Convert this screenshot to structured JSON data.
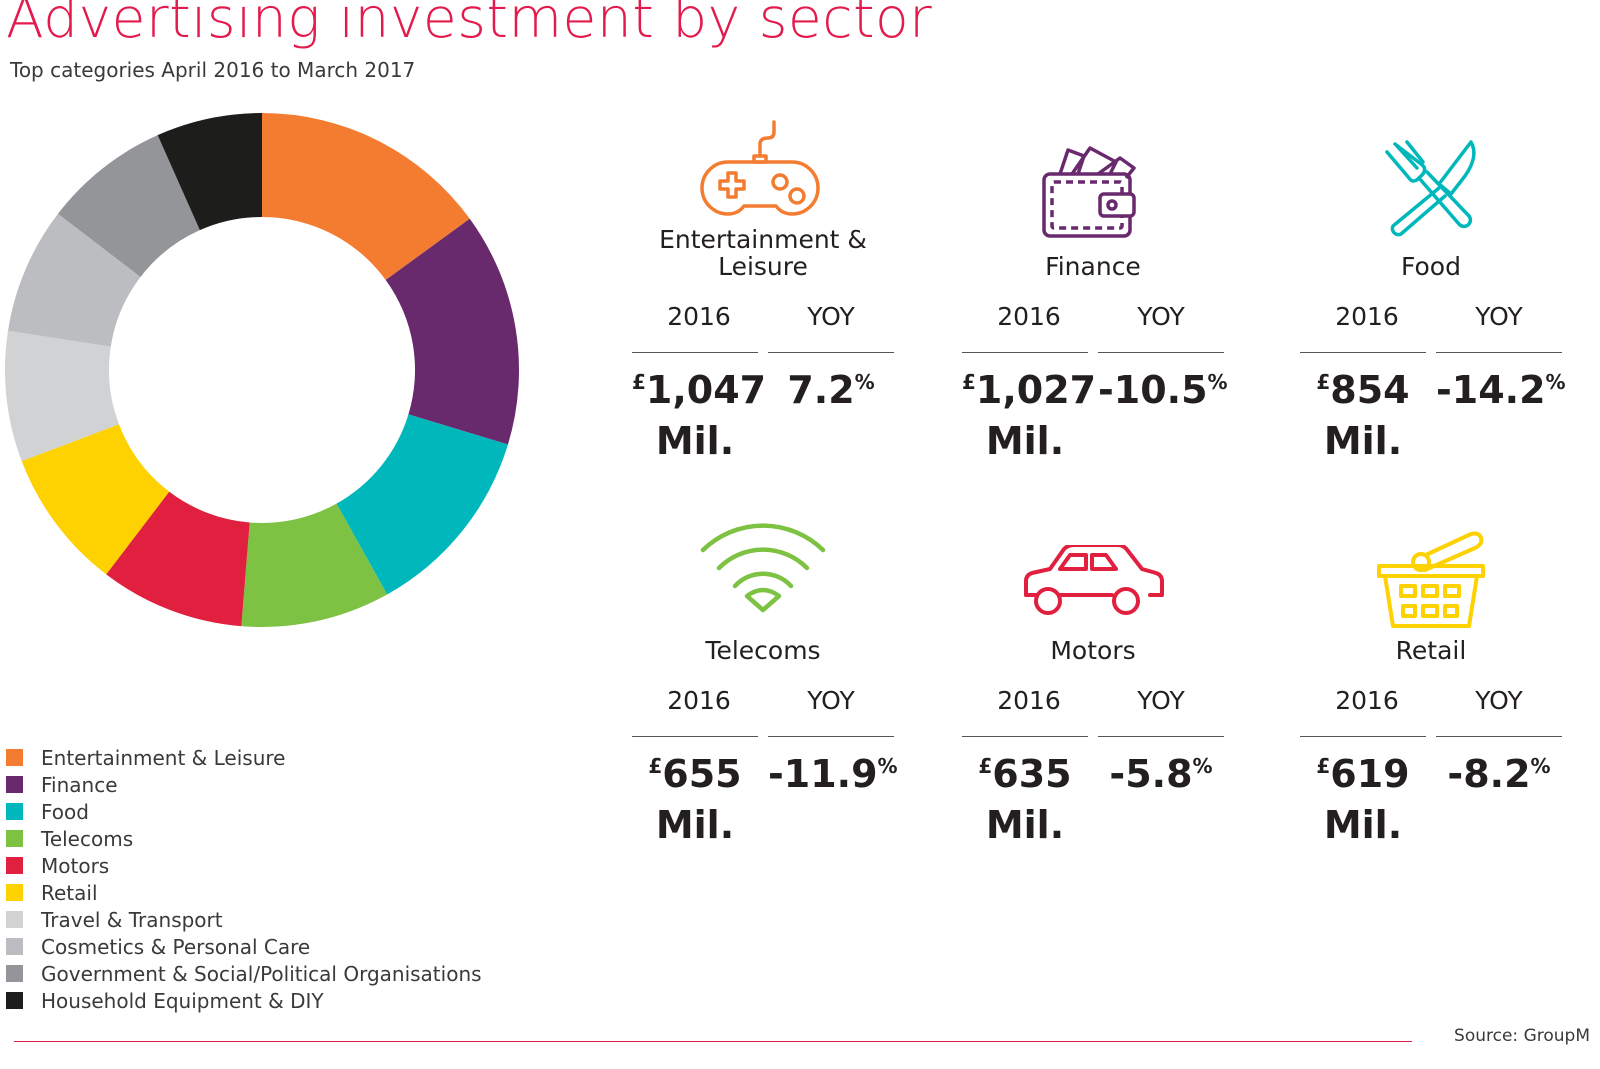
{
  "title": "Advertising investment by sector",
  "subtitle": "Top categories April 2016 to March 2017",
  "source": "Source: GroupM",
  "chart_data": {
    "type": "pie",
    "variant": "donut",
    "categories": [
      "Entertainment & Leisure",
      "Finance",
      "Food",
      "Telecoms",
      "Motors",
      "Retail",
      "Travel & Transport",
      "Cosmetics & Personal Care",
      "Government & Social/Political Organisations",
      "Household Equipment & DIY"
    ],
    "values": [
      1047,
      1027,
      854,
      655,
      635,
      619,
      574,
      556,
      555,
      465
    ],
    "colors": [
      "#f47c30",
      "#68296d",
      "#00b8bc",
      "#7dc242",
      "#e0203e",
      "#fed100",
      "#d1d2d4",
      "#bcbdc0",
      "#939598",
      "#1d1d1b"
    ],
    "legend_position": "bottom-left"
  },
  "sectors": [
    {
      "name_lines": [
        "Entertainment &",
        "Leisure"
      ],
      "icon": "gamepad-icon",
      "color": "#f47c30",
      "col1": "2016",
      "col2": "YOY",
      "amount": "1,047",
      "currency": "£",
      "unit": "Mil.",
      "yoy": "7.2",
      "yoy_unit": "%"
    },
    {
      "name_lines": [
        "",
        "Finance"
      ],
      "icon": "wallet-icon",
      "color": "#68296d",
      "col1": "2016",
      "col2": "YOY",
      "amount": "1,027",
      "currency": "£",
      "unit": "Mil.",
      "yoy": "-10.5",
      "yoy_unit": "%"
    },
    {
      "name_lines": [
        "",
        "Food"
      ],
      "icon": "fork-knife-icon",
      "color": "#00b8bc",
      "col1": "2016",
      "col2": "YOY",
      "amount": "854",
      "currency": "£",
      "unit": "Mil.",
      "yoy": "-14.2",
      "yoy_unit": "%"
    },
    {
      "name_lines": [
        "",
        "Telecoms"
      ],
      "icon": "wifi-icon",
      "color": "#7dc242",
      "col1": "2016",
      "col2": "YOY",
      "amount": "655",
      "currency": "£",
      "unit": "Mil.",
      "yoy": "-11.9",
      "yoy_unit": "%"
    },
    {
      "name_lines": [
        "",
        "Motors"
      ],
      "icon": "car-icon",
      "color": "#e0203e",
      "col1": "2016",
      "col2": "YOY",
      "amount": "635",
      "currency": "£",
      "unit": "Mil.",
      "yoy": "-5.8",
      "yoy_unit": "%"
    },
    {
      "name_lines": [
        "",
        "Retail"
      ],
      "icon": "basket-icon",
      "color": "#fed100",
      "col1": "2016",
      "col2": "YOY",
      "amount": "619",
      "currency": "£",
      "unit": "Mil.",
      "yoy": "-8.2",
      "yoy_unit": "%"
    }
  ]
}
